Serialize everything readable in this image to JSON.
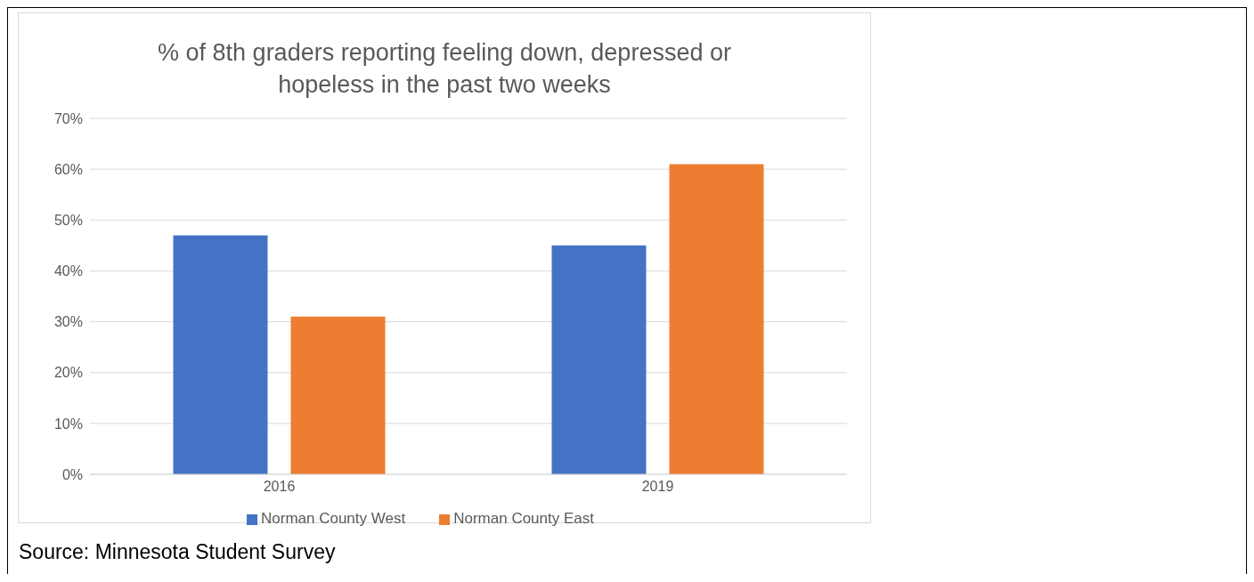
{
  "chart_data": {
    "type": "bar",
    "title": "% of 8th graders reporting feeling down, depressed or hopeless in the past two weeks",
    "categories": [
      "2016",
      "2019"
    ],
    "series": [
      {
        "name": "Norman County West",
        "color": "#4472c4",
        "values": [
          47,
          45
        ]
      },
      {
        "name": "Norman County East",
        "color": "#ed7d31",
        "values": [
          31,
          61
        ]
      }
    ],
    "ylim": [
      0,
      70
    ],
    "yticks": [
      {
        "value": 0,
        "label": "0%"
      },
      {
        "value": 10,
        "label": "10%"
      },
      {
        "value": 20,
        "label": "20%"
      },
      {
        "value": 30,
        "label": "30%"
      },
      {
        "value": 40,
        "label": "40%"
      },
      {
        "value": 50,
        "label": "50%"
      },
      {
        "value": 60,
        "label": "60%"
      },
      {
        "value": 70,
        "label": "70%"
      }
    ],
    "grid": "y",
    "legend": "bottom",
    "annotations": [
      "Source: Minnesota Student Survey"
    ]
  }
}
